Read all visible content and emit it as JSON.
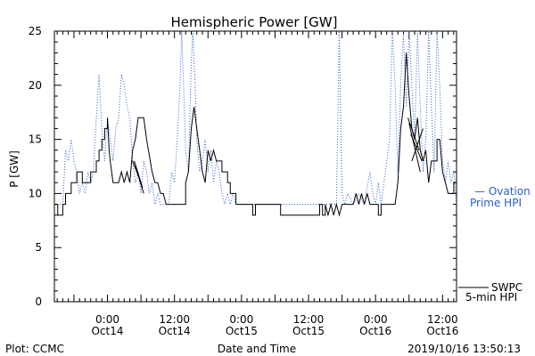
{
  "chart_data": {
    "type": "line",
    "title": "Hemispheric Power [GW]",
    "ylabel": "P [GW]",
    "xlabel": "Date and Time",
    "ylim": [
      0,
      25
    ],
    "xlim": [
      -9.5,
      62.5
    ],
    "x_units": "hours since Oct14 00:00",
    "y_ticks": [
      0,
      5,
      10,
      15,
      20,
      25
    ],
    "x_ticks": [
      {
        "x": 0,
        "time": "0:00",
        "date": "Oct14"
      },
      {
        "x": 12,
        "time": "12:00",
        "date": "Oct14"
      },
      {
        "x": 24,
        "time": "0:00",
        "date": "Oct15"
      },
      {
        "x": 36,
        "time": "12:00",
        "date": "Oct15"
      },
      {
        "x": 48,
        "time": "0:00",
        "date": "Oct16"
      },
      {
        "x": 60,
        "time": "12:00",
        "date": "Oct16"
      }
    ],
    "series": [
      {
        "name": "Ovation Prime HPI",
        "legend": [
          "— Ovation",
          "Prime HPI"
        ],
        "style": "dotted",
        "color": "#2a5dc8",
        "values": [
          [
            -9.5,
            9
          ],
          [
            -8.0,
            9
          ],
          [
            -7.5,
            14
          ],
          [
            -7.0,
            13
          ],
          [
            -6.5,
            15
          ],
          [
            -6.0,
            13
          ],
          [
            -5.5,
            12
          ],
          [
            -5.0,
            10
          ],
          [
            -4.5,
            11
          ],
          [
            -4.0,
            10
          ],
          [
            -3.5,
            12
          ],
          [
            -3.0,
            11
          ],
          [
            -2.5,
            12
          ],
          [
            -2.0,
            17
          ],
          [
            -1.5,
            21
          ],
          [
            -1.0,
            16
          ],
          [
            -0.5,
            13
          ],
          [
            0.0,
            17
          ],
          [
            0.5,
            15
          ],
          [
            1.0,
            13
          ],
          [
            1.5,
            16
          ],
          [
            2.0,
            17
          ],
          [
            2.5,
            21
          ],
          [
            3.0,
            20
          ],
          [
            3.5,
            18
          ],
          [
            4.0,
            17
          ],
          [
            4.5,
            13
          ],
          [
            5.0,
            11
          ],
          [
            5.5,
            12
          ],
          [
            6.0,
            10
          ],
          [
            6.5,
            13
          ],
          [
            7.0,
            12
          ],
          [
            7.5,
            10
          ],
          [
            8.0,
            11
          ],
          [
            8.5,
            9
          ],
          [
            9.0,
            10
          ],
          [
            9.5,
            9
          ],
          [
            10.0,
            9
          ],
          [
            11.0,
            9
          ],
          [
            11.5,
            12
          ],
          [
            12.0,
            11
          ],
          [
            12.5,
            15
          ],
          [
            13.0,
            20
          ],
          [
            13.3,
            25
          ],
          [
            13.7,
            19
          ],
          [
            14.0,
            14
          ],
          [
            14.5,
            12
          ],
          [
            15.0,
            22
          ],
          [
            15.3,
            25
          ],
          [
            15.7,
            20
          ],
          [
            16.0,
            15
          ],
          [
            16.5,
            12
          ],
          [
            17.0,
            13
          ],
          [
            17.5,
            15
          ],
          [
            18.0,
            12
          ],
          [
            18.5,
            14
          ],
          [
            19.0,
            11
          ],
          [
            19.5,
            13
          ],
          [
            20.0,
            12
          ],
          [
            20.5,
            10
          ],
          [
            21.0,
            9
          ],
          [
            21.5,
            10
          ],
          [
            22.0,
            9
          ],
          [
            22.5,
            10
          ],
          [
            23.0,
            9
          ],
          [
            24.0,
            9
          ],
          [
            26.0,
            9
          ],
          [
            28.0,
            9
          ],
          [
            30.0,
            9
          ],
          [
            32.0,
            9
          ],
          [
            34.0,
            9
          ],
          [
            36.0,
            9
          ],
          [
            38.0,
            9
          ],
          [
            40.0,
            9
          ],
          [
            41.0,
            9
          ],
          [
            41.5,
            25
          ],
          [
            42.0,
            10
          ],
          [
            42.5,
            9
          ],
          [
            43.0,
            10
          ],
          [
            44.0,
            9
          ],
          [
            45.0,
            10
          ],
          [
            46.0,
            9
          ],
          [
            47.0,
            12
          ],
          [
            47.5,
            10
          ],
          [
            48.0,
            9
          ],
          [
            48.5,
            11
          ],
          [
            49.0,
            9
          ],
          [
            50.0,
            13
          ],
          [
            50.5,
            15
          ],
          [
            51.0,
            25
          ],
          [
            51.5,
            20
          ],
          [
            52.0,
            12
          ],
          [
            52.5,
            20
          ],
          [
            53.0,
            25
          ],
          [
            53.5,
            18
          ],
          [
            54.0,
            25
          ],
          [
            54.5,
            20
          ],
          [
            55.0,
            15
          ],
          [
            55.5,
            25
          ],
          [
            56.0,
            18
          ],
          [
            56.5,
            12
          ],
          [
            57.0,
            15
          ],
          [
            57.5,
            25
          ],
          [
            58.0,
            18
          ],
          [
            58.5,
            12
          ],
          [
            59.0,
            25
          ],
          [
            59.5,
            20
          ],
          [
            60.0,
            13
          ],
          [
            60.5,
            11
          ],
          [
            61.0,
            13
          ],
          [
            61.5,
            11
          ],
          [
            62.0,
            12
          ],
          [
            62.5,
            9
          ]
        ]
      },
      {
        "name": "SWPC 5-min HPI",
        "legend": [
          "SWPC",
          "5-min HPI"
        ],
        "style": "solid",
        "color": "#000000",
        "values": [
          [
            -9.5,
            9
          ],
          [
            -8.9,
            9
          ],
          [
            -8.9,
            8
          ],
          [
            -8.0,
            8
          ],
          [
            -8.0,
            9
          ],
          [
            -7.5,
            9
          ],
          [
            -7.5,
            10
          ],
          [
            -6.5,
            10
          ],
          [
            -6.5,
            11
          ],
          [
            -5.5,
            11
          ],
          [
            -5.5,
            12
          ],
          [
            -4.5,
            12
          ],
          [
            -4.5,
            11
          ],
          [
            -3.0,
            11
          ],
          [
            -3.0,
            12
          ],
          [
            -2.0,
            12
          ],
          [
            -2.0,
            13
          ],
          [
            -1.5,
            13
          ],
          [
            -1.5,
            14
          ],
          [
            -1.0,
            14
          ],
          [
            -1.0,
            15
          ],
          [
            -0.5,
            15
          ],
          [
            -0.5,
            16
          ],
          [
            0.0,
            16
          ],
          [
            0.0,
            17
          ],
          [
            0.3,
            14
          ],
          [
            0.5,
            13
          ],
          [
            1.0,
            11
          ],
          [
            2.0,
            11
          ],
          [
            2.5,
            12
          ],
          [
            3.0,
            11
          ],
          [
            3.5,
            12
          ],
          [
            4.0,
            11
          ],
          [
            4.5,
            14
          ],
          [
            5.0,
            15
          ],
          [
            5.5,
            17
          ],
          [
            6.5,
            17
          ],
          [
            7.0,
            15
          ],
          [
            8.0,
            12
          ],
          [
            8.5,
            11
          ],
          [
            9.0,
            11
          ],
          [
            9.5,
            10
          ],
          [
            10.0,
            10
          ],
          [
            10.5,
            9
          ],
          [
            14.0,
            9
          ],
          [
            14.0,
            11
          ],
          [
            14.5,
            12
          ],
          [
            15.0,
            16
          ],
          [
            15.5,
            18
          ],
          [
            16.0,
            16
          ],
          [
            16.5,
            14
          ],
          [
            17.0,
            12
          ],
          [
            17.5,
            11
          ],
          [
            18.0,
            14
          ],
          [
            18.5,
            13
          ],
          [
            19.0,
            14
          ],
          [
            19.5,
            13
          ],
          [
            20.5,
            13
          ],
          [
            20.5,
            12
          ],
          [
            21.5,
            12
          ],
          [
            21.5,
            11
          ],
          [
            22.0,
            11
          ],
          [
            22.0,
            10
          ],
          [
            23.0,
            10
          ],
          [
            23.0,
            9
          ],
          [
            26.0,
            9
          ],
          [
            26.0,
            8
          ],
          [
            26.5,
            8
          ],
          [
            26.5,
            9
          ],
          [
            31.0,
            9
          ],
          [
            31.0,
            8
          ],
          [
            38.0,
            8
          ],
          [
            38.0,
            9
          ],
          [
            38.5,
            9
          ],
          [
            38.5,
            8
          ],
          [
            39.0,
            8
          ],
          [
            39.0,
            9
          ],
          [
            39.5,
            8
          ],
          [
            40.0,
            9
          ],
          [
            40.5,
            8
          ],
          [
            41.0,
            9
          ],
          [
            41.5,
            8
          ],
          [
            42.0,
            9
          ],
          [
            44.0,
            9
          ],
          [
            44.5,
            10
          ],
          [
            45.0,
            9
          ],
          [
            45.5,
            10
          ],
          [
            46.0,
            9
          ],
          [
            46.5,
            10
          ],
          [
            47.0,
            9
          ],
          [
            48.0,
            9
          ],
          [
            48.5,
            9
          ],
          [
            48.5,
            8
          ],
          [
            49.0,
            8
          ],
          [
            49.0,
            9
          ],
          [
            51.5,
            9
          ],
          [
            52.0,
            11
          ],
          [
            52.5,
            16
          ],
          [
            53.0,
            18
          ],
          [
            53.5,
            23
          ],
          [
            54.0,
            19
          ],
          [
            54.5,
            16
          ],
          [
            55.0,
            15
          ],
          [
            55.5,
            17
          ],
          [
            56.0,
            14
          ],
          [
            56.5,
            13
          ],
          [
            57.0,
            14
          ],
          [
            57.5,
            11
          ],
          [
            58.0,
            13
          ],
          [
            59.0,
            13
          ],
          [
            59.0,
            15
          ],
          [
            59.5,
            15
          ],
          [
            60.0,
            12
          ],
          [
            60.5,
            11
          ],
          [
            61.0,
            10
          ],
          [
            62.0,
            10
          ],
          [
            62.0,
            11
          ],
          [
            62.5,
            11
          ]
        ],
        "extra_segments": [
          [
            [
              4.5,
              13
            ],
            [
              6.0,
              11
            ]
          ],
          [
            [
              4.8,
              13
            ],
            [
              6.3,
              10.5
            ]
          ],
          [
            [
              5.0,
              12.5
            ],
            [
              6.5,
              10
            ]
          ],
          [
            [
              53.8,
              17
            ],
            [
              55.8,
              14
            ]
          ],
          [
            [
              54.0,
              16.5
            ],
            [
              56.0,
              12
            ]
          ],
          [
            [
              54.3,
              15.5
            ],
            [
              56.3,
              13
            ]
          ],
          [
            [
              54.5,
              13
            ],
            [
              56.5,
              16
            ]
          ]
        ]
      }
    ],
    "grid": false
  },
  "footer": {
    "left": "Plot: CCMC",
    "center": "Date and Time",
    "right": "2019/10/16 13:50:13"
  }
}
